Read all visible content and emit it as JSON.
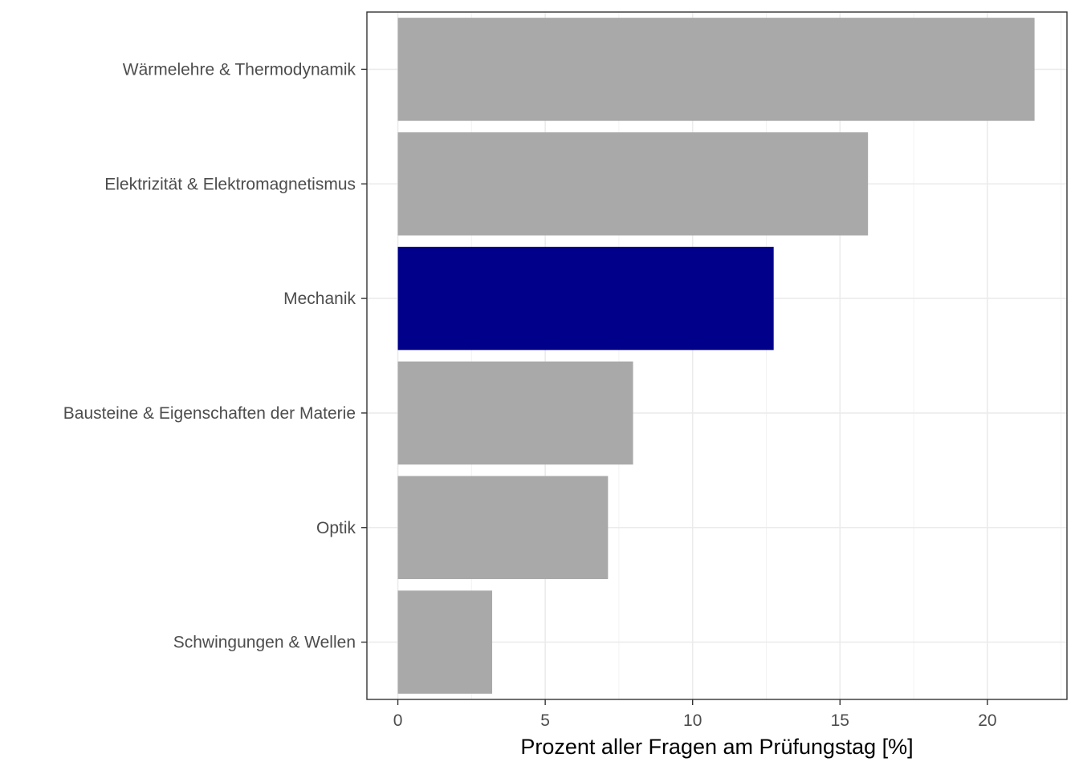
{
  "chart_data": {
    "type": "bar",
    "orientation": "horizontal",
    "categories": [
      "Wärmelehre & Thermodynamik",
      "Elektrizität & Elektromagnetismus",
      "Mechanik",
      "Bausteine & Eigenschaften der Materie",
      "Optik",
      "Schwingungen & Wellen"
    ],
    "values": [
      21.6,
      15.95,
      12.75,
      7.98,
      7.13,
      3.2
    ],
    "highlight_index": 2,
    "colors": {
      "default": "#a9a9a9",
      "highlight": "#00008b"
    },
    "xlabel": "Prozent aller Fragen am Prüfungstag [%]",
    "ylabel": "",
    "xlim": [
      -1.05,
      22.7
    ],
    "xticks": [
      0,
      5,
      10,
      15,
      20
    ],
    "grid": true,
    "legend": "none"
  }
}
